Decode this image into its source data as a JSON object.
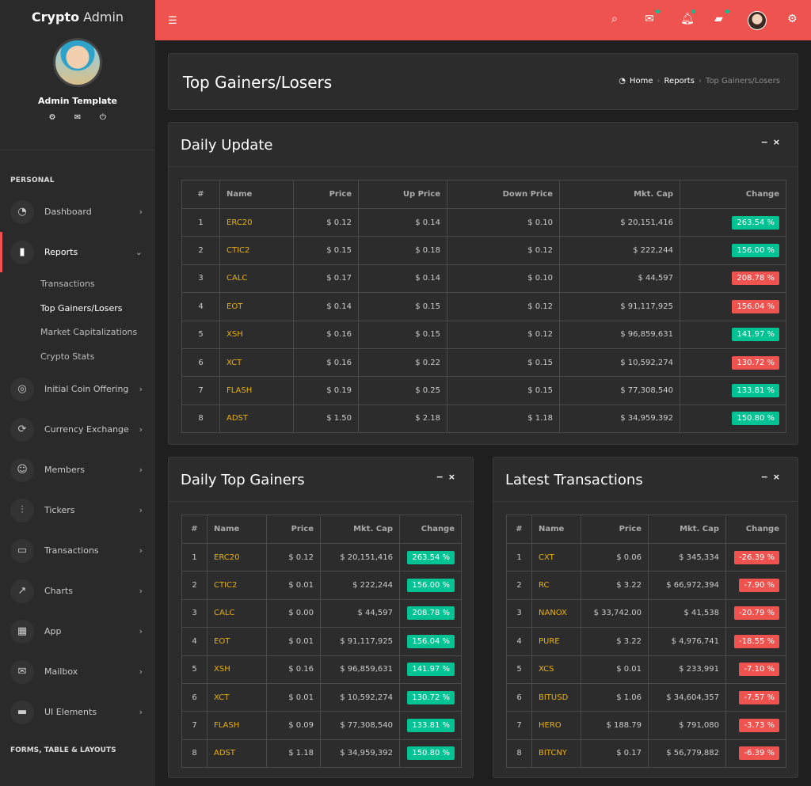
{
  "sidebar": {
    "brand_bold": "Crypto",
    "brand_rest": "Admin",
    "profile_name": "Admin Template",
    "section_personal": "PERSONAL",
    "items": [
      {
        "label": "Dashboard",
        "icon": "dashboard-icon"
      },
      {
        "label": "Reports",
        "icon": "bar-chart-icon"
      },
      {
        "label": "Initial Coin Offering",
        "icon": "compass-icon"
      },
      {
        "label": "Currency Exchange",
        "icon": "exchange-icon"
      },
      {
        "label": "Members",
        "icon": "user-icon"
      },
      {
        "label": "Tickers",
        "icon": "sliders-icon"
      },
      {
        "label": "Transactions",
        "icon": "wallet-icon"
      },
      {
        "label": "Charts",
        "icon": "line-chart-icon"
      },
      {
        "label": "App",
        "icon": "grid-icon"
      },
      {
        "label": "Mailbox",
        "icon": "mail-icon"
      },
      {
        "label": "UI Elements",
        "icon": "laptop-icon"
      }
    ],
    "submenu": [
      "Transactions",
      "Top Gainers/Losers",
      "Market Capitalizations",
      "Crypto Stats"
    ],
    "section_forms": "FORMS, TABLE & LAYOUTS"
  },
  "page": {
    "title": "Top Gainers/Losers",
    "breadcrumb": [
      "Home",
      "Reports",
      "Top Gainers/Losers"
    ]
  },
  "daily_update": {
    "title": "Daily Update",
    "headers": [
      "#",
      "Name",
      "Price",
      "Up Price",
      "Down Price",
      "Mkt. Cap",
      "Change"
    ],
    "rows": [
      {
        "n": "1",
        "name": "ERC20",
        "price": "$ 0.12",
        "up": "$ 0.14",
        "down": "$ 0.10",
        "cap": "$ 20,151,416",
        "change": "263.54 %",
        "dir": "up"
      },
      {
        "n": "2",
        "name": "CTIC2",
        "price": "$ 0.15",
        "up": "$ 0.18",
        "down": "$ 0.12",
        "cap": "$ 222,244",
        "change": "156.00 %",
        "dir": "up"
      },
      {
        "n": "3",
        "name": "CALC",
        "price": "$ 0.17",
        "up": "$ 0.14",
        "down": "$ 0.10",
        "cap": "$ 44,597",
        "change": "208.78 %",
        "dir": "down"
      },
      {
        "n": "4",
        "name": "EOT",
        "price": "$ 0.14",
        "up": "$ 0.15",
        "down": "$ 0.12",
        "cap": "$ 91,117,925",
        "change": "156.04 %",
        "dir": "down"
      },
      {
        "n": "5",
        "name": "XSH",
        "price": "$ 0.16",
        "up": "$ 0.15",
        "down": "$ 0.12",
        "cap": "$ 96,859,631",
        "change": "141.97 %",
        "dir": "up"
      },
      {
        "n": "6",
        "name": "XCT",
        "price": "$ 0.16",
        "up": "$ 0.22",
        "down": "$ 0.15",
        "cap": "$ 10,592,274",
        "change": "130.72 %",
        "dir": "down"
      },
      {
        "n": "7",
        "name": "FLASH",
        "price": "$ 0.19",
        "up": "$ 0.25",
        "down": "$ 0.15",
        "cap": "$ 77,308,540",
        "change": "133.81 %",
        "dir": "up"
      },
      {
        "n": "8",
        "name": "ADST",
        "price": "$ 1.50",
        "up": "$ 2.18",
        "down": "$ 1.18",
        "cap": "$ 34,959,392",
        "change": "150.80 %",
        "dir": "up"
      }
    ]
  },
  "gainers": {
    "title": "Daily Top Gainers",
    "headers": [
      "#",
      "Name",
      "Price",
      "Mkt. Cap",
      "Change"
    ],
    "rows": [
      {
        "n": "1",
        "name": "ERC20",
        "price": "$ 0.12",
        "cap": "$ 20,151,416",
        "change": "263.54 %",
        "dir": "up"
      },
      {
        "n": "2",
        "name": "CTIC2",
        "price": "$ 0.01",
        "cap": "$ 222,244",
        "change": "156.00 %",
        "dir": "up"
      },
      {
        "n": "3",
        "name": "CALC",
        "price": "$ 0.00",
        "cap": "$ 44,597",
        "change": "208.78 %",
        "dir": "up"
      },
      {
        "n": "4",
        "name": "EOT",
        "price": "$ 0.01",
        "cap": "$ 91,117,925",
        "change": "156.04 %",
        "dir": "up"
      },
      {
        "n": "5",
        "name": "XSH",
        "price": "$ 0.16",
        "cap": "$ 96,859,631",
        "change": "141.97 %",
        "dir": "up"
      },
      {
        "n": "6",
        "name": "XCT",
        "price": "$ 0.01",
        "cap": "$ 10,592,274",
        "change": "130.72 %",
        "dir": "up"
      },
      {
        "n": "7",
        "name": "FLASH",
        "price": "$ 0.09",
        "cap": "$ 77,308,540",
        "change": "133.81 %",
        "dir": "up"
      },
      {
        "n": "8",
        "name": "ADST",
        "price": "$ 1.18",
        "cap": "$ 34,959,392",
        "change": "150.80 %",
        "dir": "up"
      }
    ]
  },
  "transactions": {
    "title": "Latest Transactions",
    "headers": [
      "#",
      "Name",
      "Price",
      "Mkt. Cap",
      "Change"
    ],
    "rows": [
      {
        "n": "1",
        "name": "CXT",
        "price": "$ 0.06",
        "cap": "$ 345,334",
        "change": "-26.39 %",
        "dir": "down"
      },
      {
        "n": "2",
        "name": "RC",
        "price": "$ 3.22",
        "cap": "$ 66,972,394",
        "change": "-7.90 %",
        "dir": "down"
      },
      {
        "n": "3",
        "name": "NANOX",
        "price": "$ 33,742.00",
        "cap": "$ 41,538",
        "change": "-20.79 %",
        "dir": "down"
      },
      {
        "n": "4",
        "name": "PURE",
        "price": "$ 3.22",
        "cap": "$ 4,976,741",
        "change": "-18.55 %",
        "dir": "down"
      },
      {
        "n": "5",
        "name": "XCS",
        "price": "$ 0.01",
        "cap": "$ 233,991",
        "change": "-7.10 %",
        "dir": "down"
      },
      {
        "n": "6",
        "name": "BITUSD",
        "price": "$ 1.06",
        "cap": "$ 34,604,357",
        "change": "-7.57 %",
        "dir": "down"
      },
      {
        "n": "7",
        "name": "HERO",
        "price": "$ 188.79",
        "cap": "$ 791,080",
        "change": "-3.73 %",
        "dir": "down"
      },
      {
        "n": "8",
        "name": "BITCNY",
        "price": "$ 0.17",
        "cap": "$ 56,779,882",
        "change": "-6.39 %",
        "dir": "down"
      }
    ]
  },
  "colors": {
    "accent": "#ef5350",
    "up": "#00c292",
    "down": "#ef5350",
    "coin": "#e8b010"
  }
}
